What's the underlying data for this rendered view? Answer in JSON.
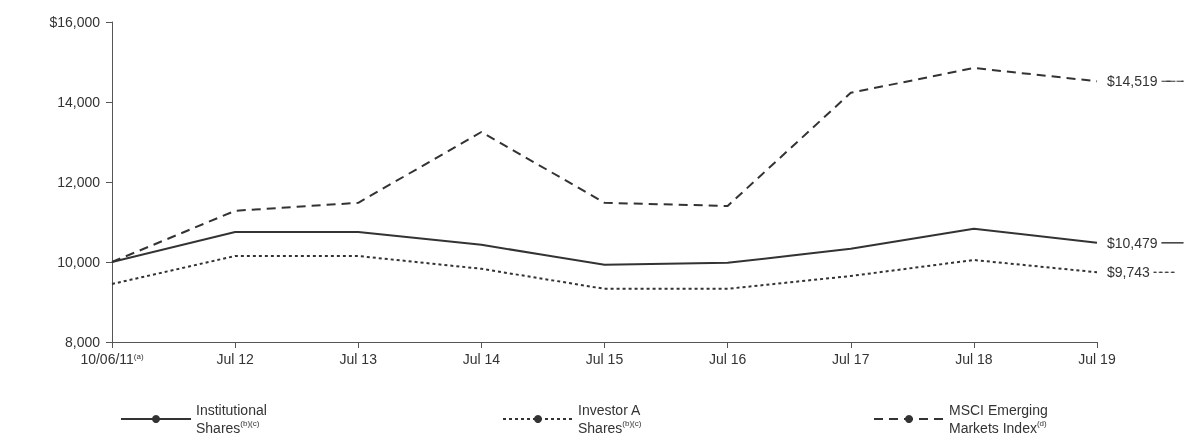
{
  "chart_data": {
    "type": "line",
    "categories": [
      "10/06/11$^{(a)}$",
      "Jul 12",
      "Jul 13",
      "Jul 14",
      "Jul 15",
      "Jul 16",
      "Jul 17",
      "Jul 18",
      "Jul 19"
    ],
    "ylim": [
      8000,
      16000
    ],
    "yticks": [
      {
        "value": 8000,
        "label": "8,000"
      },
      {
        "value": 10000,
        "label": "10,000"
      },
      {
        "value": 12000,
        "label": "12,000"
      },
      {
        "value": 14000,
        "label": "14,000"
      },
      {
        "value": 16000,
        "label": "$16,000"
      }
    ],
    "grid": false,
    "legend": "bottom",
    "marker": "none",
    "series": [
      {
        "name": "Institutional\nShares$^{(b)(c)}$",
        "color": "#333333",
        "line_style": "solid",
        "values": [
          10000,
          10750,
          10750,
          10430,
          9930,
          9980,
          10330,
          10830,
          10479
        ],
        "value_labels": [
          null,
          null,
          null,
          null,
          null,
          null,
          null,
          null,
          "$10,479"
        ]
      },
      {
        "name": "Investor A\nShares$^{(b)(c)}$",
        "color": "#333333",
        "line_style": "dotted",
        "values": [
          9450,
          10150,
          10150,
          9830,
          9330,
          9330,
          9650,
          10050,
          9743
        ],
        "value_labels": [
          null,
          null,
          null,
          null,
          null,
          null,
          null,
          null,
          "$9,743"
        ]
      },
      {
        "name": "MSCI Emerging\nMarkets Index$^{(d)}$",
        "color": "#333333",
        "line_style": "dashed",
        "values": [
          10000,
          11280,
          11480,
          13250,
          11480,
          11400,
          14230,
          14850,
          14519
        ],
        "value_labels": [
          null,
          null,
          null,
          null,
          null,
          null,
          null,
          null,
          "$14,519"
        ]
      }
    ]
  }
}
